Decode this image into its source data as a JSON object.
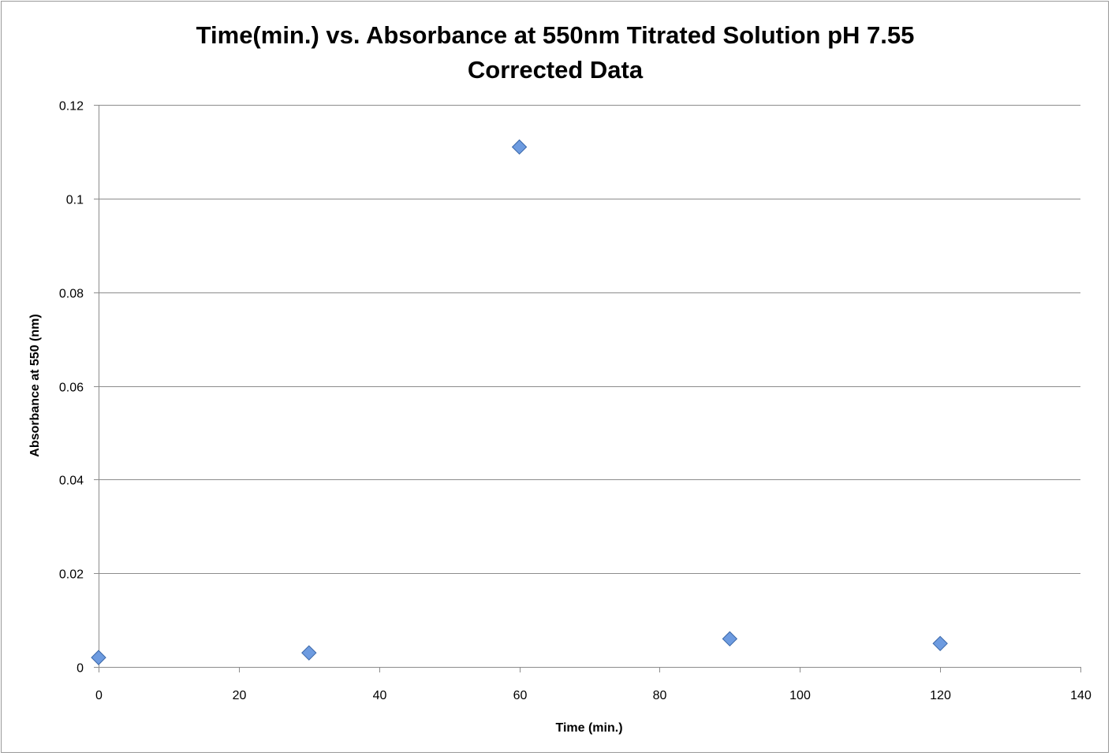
{
  "chart_data": {
    "type": "scatter",
    "title_lines": [
      "Time(min.) vs. Absorbance at 550nm Titrated Solution pH 7.55",
      "Corrected Data"
    ],
    "xlabel": "Time (min.)",
    "ylabel": "Absorbance at 550 (nm)",
    "xlim": [
      0,
      140
    ],
    "ylim": [
      0,
      0.12
    ],
    "x_ticks": [
      0,
      20,
      40,
      60,
      80,
      100,
      120,
      140
    ],
    "y_ticks": [
      0,
      0.02,
      0.04,
      0.06,
      0.08,
      0.1,
      0.12
    ],
    "x_tick_labels": [
      "0",
      "20",
      "40",
      "60",
      "80",
      "100",
      "120",
      "140"
    ],
    "y_tick_labels": [
      "0",
      "0.02",
      "0.04",
      "0.06",
      "0.08",
      "0.1",
      "0.12"
    ],
    "grid": "horizontal",
    "legend": "none",
    "marker": "diamond",
    "series": [
      {
        "x": [
          0,
          30,
          60,
          90,
          120
        ],
        "y": [
          0.002,
          0.003,
          0.111,
          0.006,
          0.005
        ],
        "color": "#4f81bd"
      }
    ]
  },
  "colors": {
    "marker_fill": "#6d9be0",
    "marker_stroke": "#3a67a8",
    "grid": "#8c8c8c",
    "axis": "#8c8c8c"
  }
}
